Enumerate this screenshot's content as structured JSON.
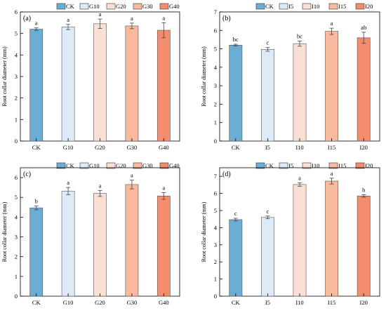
{
  "chart_data": [
    {
      "type": "bar",
      "panel_label": "(a)",
      "categories": [
        "CK",
        "G10",
        "G20",
        "G30",
        "G40"
      ],
      "values": [
        5.2,
        5.3,
        5.45,
        5.35,
        5.15
      ],
      "errors": [
        0.06,
        0.12,
        0.22,
        0.13,
        0.35
      ],
      "significance": [
        "a",
        "a",
        "a",
        "a",
        "a"
      ],
      "colors": [
        "#6aaed6",
        "#ddeaf7",
        "#fae0d4",
        "#f9b99d",
        "#f48c6e"
      ],
      "legend": [
        "CK",
        "G10",
        "G20",
        "G30",
        "G40"
      ],
      "legend_placement": "top",
      "ylabel": "Root collar diameter (mm)",
      "xlabel": "",
      "ylim": [
        0,
        6
      ],
      "yticks": [
        0,
        1,
        2,
        3,
        4,
        5,
        6
      ],
      "grid": false
    },
    {
      "type": "bar",
      "panel_label": "(b)",
      "categories": [
        "CK",
        "I5",
        "I10",
        "I15",
        "I20"
      ],
      "values": [
        5.2,
        4.97,
        5.28,
        5.95,
        5.6
      ],
      "errors": [
        0.05,
        0.1,
        0.14,
        0.17,
        0.3
      ],
      "significance": [
        "bc",
        "c",
        "bc",
        "a",
        "ab"
      ],
      "colors": [
        "#6aaed6",
        "#ddeaf7",
        "#fae0d4",
        "#f9b99d",
        "#f48c6e"
      ],
      "legend": [
        "CK",
        "I5",
        "I10",
        "I15",
        "I20"
      ],
      "legend_placement": "top",
      "ylabel": "Root collar diameter (mm)",
      "xlabel": "",
      "ylim": [
        0,
        7
      ],
      "yticks": [
        0,
        1,
        2,
        3,
        4,
        5,
        6,
        7
      ],
      "grid": false
    },
    {
      "type": "bar",
      "panel_label": "(c)",
      "categories": [
        "CK",
        "G10",
        "G20",
        "G30",
        "G40"
      ],
      "values": [
        4.47,
        5.32,
        5.2,
        5.65,
        5.07
      ],
      "errors": [
        0.1,
        0.18,
        0.15,
        0.22,
        0.17
      ],
      "significance": [
        "b",
        "a",
        "a",
        "a",
        "a"
      ],
      "colors": [
        "#6aaed6",
        "#ddeaf7",
        "#fae0d4",
        "#f9b99d",
        "#f48c6e"
      ],
      "legend": [
        "CK",
        "G10",
        "G20",
        "G30",
        "G40"
      ],
      "legend_placement": "top",
      "ylabel": "Root collar diameter (mm)",
      "xlabel": "",
      "ylim": [
        0,
        6.5
      ],
      "yticks": [
        0,
        1,
        2,
        3,
        4,
        5,
        6
      ],
      "grid": false
    },
    {
      "type": "bar",
      "panel_label": "(d)",
      "categories": [
        "CK",
        "I5",
        "I10",
        "I15",
        "I20"
      ],
      "values": [
        4.47,
        4.6,
        6.52,
        6.72,
        5.85
      ],
      "errors": [
        0.08,
        0.08,
        0.1,
        0.17,
        0.07
      ],
      "significance": [
        "c",
        "c",
        "a",
        "a",
        "b"
      ],
      "colors": [
        "#6aaed6",
        "#ddeaf7",
        "#fae0d4",
        "#f9b99d",
        "#f48c6e"
      ],
      "legend": [
        "CK",
        "I5",
        "I10",
        "I15",
        "I20"
      ],
      "legend_placement": "top",
      "ylabel": "Root collar diameter (mm)",
      "xlabel": "",
      "ylim": [
        0,
        7.5
      ],
      "yticks": [
        0,
        1,
        2,
        3,
        4,
        5,
        6,
        7
      ],
      "grid": false
    }
  ]
}
